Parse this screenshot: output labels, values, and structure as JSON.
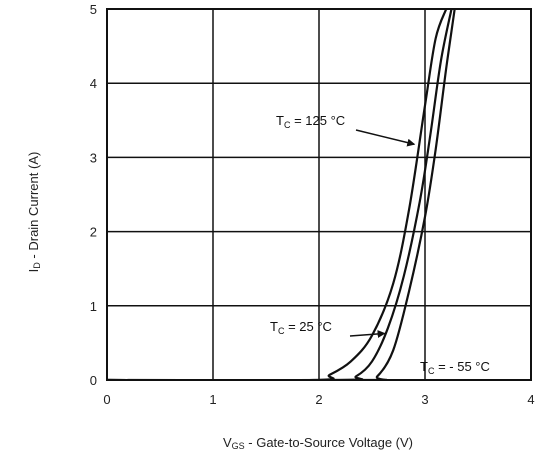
{
  "chart_data": {
    "type": "line",
    "xlabel": {
      "main": "V",
      "sub": "GS",
      "rest": " - Gate-to-Source Voltage (V)"
    },
    "ylabel": {
      "main": "I",
      "sub": "D",
      "rest": " - Drain Current (A)"
    },
    "xlim": [
      0,
      4
    ],
    "ylim": [
      0,
      5
    ],
    "xticks": [
      "0",
      "1",
      "2",
      "3",
      "4"
    ],
    "yticks": [
      "0",
      "1",
      "2",
      "3",
      "4",
      "5"
    ],
    "grid": true,
    "series": [
      {
        "name": "125 °C",
        "x": [
          0,
          1.95,
          2.1,
          2.3,
          2.5,
          2.7,
          2.85,
          3.0,
          3.1,
          3.2
        ],
        "y": [
          0,
          0,
          0.07,
          0.25,
          0.6,
          1.3,
          2.3,
          3.7,
          4.6,
          5.0
        ]
      },
      {
        "name": "25 °C",
        "x": [
          0,
          2.2,
          2.35,
          2.5,
          2.65,
          2.8,
          2.95,
          3.05,
          3.15,
          3.25
        ],
        "y": [
          0,
          0,
          0.05,
          0.25,
          0.7,
          1.4,
          2.4,
          3.3,
          4.3,
          5.0
        ]
      },
      {
        "name": "- 55 °C",
        "x": [
          0,
          2.42,
          2.55,
          2.7,
          2.85,
          3.0,
          3.1,
          3.2,
          3.28
        ],
        "y": [
          0,
          0,
          0.05,
          0.4,
          1.2,
          2.2,
          3.1,
          4.2,
          5.0
        ]
      }
    ],
    "annotations": [
      {
        "prefix": "T",
        "sub": "C",
        "text": " = 125 °C",
        "series": 0
      },
      {
        "prefix": "T",
        "sub": "C",
        "text": " = 25 °C",
        "series": 1
      },
      {
        "prefix": "T",
        "sub": "C",
        "text": " = - 55 °C",
        "series": 2
      }
    ]
  }
}
